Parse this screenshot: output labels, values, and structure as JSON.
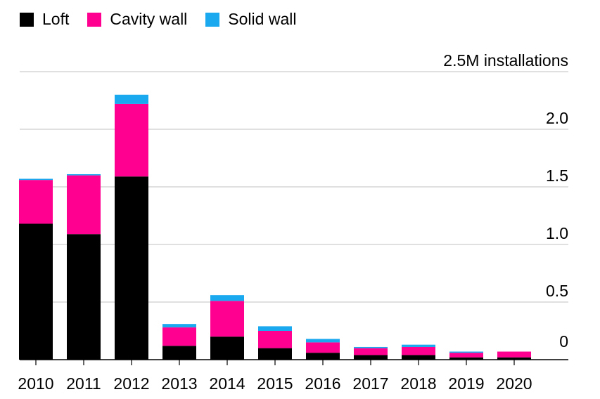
{
  "chart_data": {
    "type": "bar",
    "stacked": true,
    "categories": [
      "2010",
      "2011",
      "2012",
      "2013",
      "2014",
      "2015",
      "2016",
      "2017",
      "2018",
      "2019",
      "2020"
    ],
    "series": [
      {
        "name": "Loft",
        "color": "#000000",
        "values": [
          1.18,
          1.09,
          1.59,
          0.12,
          0.2,
          0.1,
          0.06,
          0.04,
          0.04,
          0.02,
          0.02
        ]
      },
      {
        "name": "Cavity wall",
        "color": "#ff0090",
        "values": [
          0.38,
          0.51,
          0.63,
          0.16,
          0.31,
          0.15,
          0.09,
          0.06,
          0.07,
          0.04,
          0.05
        ]
      },
      {
        "name": "Solid wall",
        "color": "#1aa8ef",
        "values": [
          0.01,
          0.01,
          0.08,
          0.03,
          0.05,
          0.04,
          0.03,
          0.01,
          0.02,
          0.01,
          0.0
        ]
      }
    ],
    "yticks": [
      "0",
      "0.5",
      "1.0",
      "1.5",
      "2.0",
      "2.5M installations"
    ],
    "ytick_values": [
      0,
      0.5,
      1.0,
      1.5,
      2.0,
      2.5
    ],
    "ylim": [
      0,
      2.5
    ],
    "grid": true,
    "legend": "top-left"
  }
}
